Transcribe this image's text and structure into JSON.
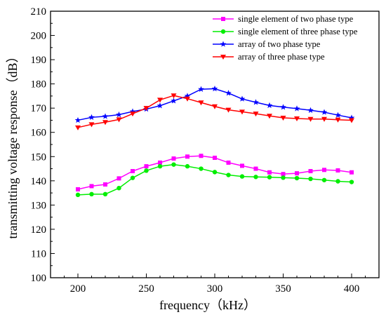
{
  "chart_data": {
    "type": "line",
    "title": "",
    "xlabel": "frequency（kHz）",
    "ylabel": "transmitting voltage response（dB）",
    "xlim": [
      180,
      420
    ],
    "ylim": [
      100,
      210
    ],
    "xticks": [
      200,
      250,
      300,
      350,
      400
    ],
    "yticks": [
      100,
      110,
      120,
      130,
      140,
      150,
      160,
      170,
      180,
      190,
      200,
      210
    ],
    "grid": false,
    "legend_position": "top-right",
    "x": [
      200,
      210,
      220,
      230,
      240,
      250,
      260,
      270,
      280,
      290,
      300,
      310,
      320,
      330,
      340,
      350,
      360,
      370,
      380,
      390,
      400
    ],
    "series": [
      {
        "name": "single element of two phase type",
        "color": "#ff00ff",
        "marker": "square",
        "values": [
          136.5,
          137.8,
          138.5,
          141.0,
          144.0,
          146.0,
          147.5,
          149.2,
          150.0,
          150.3,
          149.5,
          147.5,
          146.2,
          145.0,
          143.5,
          142.8,
          143.1,
          144.0,
          144.5,
          144.3,
          143.5
        ]
      },
      {
        "name": "single element of three phase type",
        "color": "#00ee00",
        "marker": "circle",
        "values": [
          134.2,
          134.5,
          134.5,
          137.0,
          141.2,
          144.2,
          146.0,
          146.7,
          146.0,
          145.0,
          143.6,
          142.4,
          141.8,
          141.6,
          141.5,
          141.3,
          141.1,
          140.8,
          140.3,
          139.8,
          139.5
        ]
      },
      {
        "name": "array of two phase type",
        "color": "#0000ff",
        "marker": "star",
        "values": [
          165.0,
          166.2,
          166.6,
          167.3,
          168.6,
          169.6,
          171.0,
          173.0,
          175.0,
          177.8,
          178.0,
          176.2,
          173.8,
          172.4,
          171.1,
          170.4,
          169.8,
          169.1,
          168.3,
          167.1,
          166.0
        ]
      },
      {
        "name": "array of three phase type",
        "color": "#ff0000",
        "marker": "triangle-down",
        "values": [
          162.0,
          163.3,
          164.2,
          165.3,
          167.7,
          170.0,
          173.4,
          175.2,
          173.9,
          172.3,
          170.7,
          169.3,
          168.5,
          167.7,
          166.8,
          166.0,
          165.7,
          165.5,
          165.5,
          165.2,
          165.0
        ]
      }
    ]
  }
}
